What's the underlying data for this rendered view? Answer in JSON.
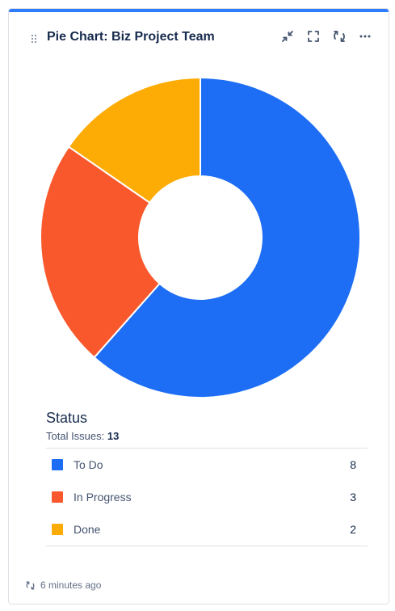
{
  "header": {
    "title": "Pie Chart: Biz Project Team",
    "icons": [
      "drag-handle-icon",
      "minimize-icon",
      "fullscreen-icon",
      "refresh-icon",
      "more-icon"
    ],
    "accent_color": "#2f7cff"
  },
  "chart_data": {
    "type": "pie",
    "donut": true,
    "categories": [
      "To Do",
      "In Progress",
      "Done"
    ],
    "values": [
      8,
      3,
      2
    ],
    "colors": [
      "#1d6ef5",
      "#f9582d",
      "#fdab05"
    ]
  },
  "summary": {
    "title": "Status",
    "total_label": "Total Issues:",
    "total_value": "13"
  },
  "legend": [
    {
      "label": "To Do",
      "count": "8",
      "color": "#1d6ef5"
    },
    {
      "label": "In Progress",
      "count": "3",
      "color": "#f9582d"
    },
    {
      "label": "Done",
      "count": "2",
      "color": "#fdab05"
    }
  ],
  "footer": {
    "updated": "6 minutes ago"
  }
}
